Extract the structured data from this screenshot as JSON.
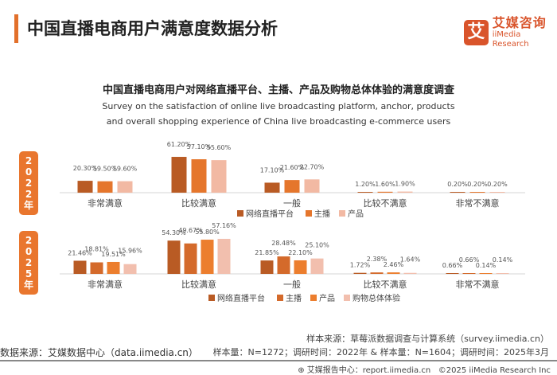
{
  "header": {
    "title": "中国直播电商用户满意度数据分析",
    "logo_mark": "艾",
    "logo_cn": "艾媒咨询",
    "logo_en": "iiMedia Research"
  },
  "chart_data": [
    {
      "type": "bar",
      "year_label": "2022年",
      "title": "中国直播电商用户对网络直播平台、主播、产品及购物总体体验的满意度调查",
      "subtitle": "Survey on the satisfaction of online live broadcasting platform, anchor, products and overall shopping experience of China live broadcasting e-commerce users",
      "categories": [
        "非常满意",
        "比较满意",
        "一般",
        "比较不满意",
        "非常不满意"
      ],
      "series": [
        {
          "name": "网络直播平台",
          "color": "#b95b24",
          "values": [
            20.3,
            61.2,
            17.1,
            1.2,
            0.2
          ]
        },
        {
          "name": "主播",
          "color": "#e5762c",
          "values": [
            19.5,
            57.1,
            21.6,
            1.6,
            0.2
          ]
        },
        {
          "name": "产品",
          "color": "#f2b9a3",
          "values": [
            19.6,
            55.6,
            22.7,
            1.9,
            0.2
          ]
        }
      ],
      "unit": "%"
    },
    {
      "type": "bar",
      "year_label": "2025年",
      "categories": [
        "非常满意",
        "比较满意",
        "一般",
        "比较不满意",
        "非常不满意"
      ],
      "series": [
        {
          "name": "网络直播平台",
          "color": "#b95b24",
          "values": [
            21.46,
            54.3,
            21.85,
            1.72,
            0.66
          ]
        },
        {
          "name": "主播",
          "color": "#d46a2b",
          "values": [
            18.81,
            49.67,
            28.48,
            2.38,
            0.66
          ]
        },
        {
          "name": "产品",
          "color": "#ec7e2e",
          "values": [
            19.51,
            55.8,
            22.1,
            2.46,
            0.14
          ]
        },
        {
          "name": "购物总体体验",
          "color": "#f2bfae",
          "values": [
            15.96,
            57.16,
            25.1,
            1.64,
            0.14
          ]
        }
      ],
      "unit": "%"
    }
  ],
  "footer": {
    "sample_source": "样本来源：草莓派数据调查与计算系统（survey.iimedia.cn）",
    "sample_info": "样本量：N=1272；调研时间：2022年 & 样本量：N=1604；调研时间：2025年3月",
    "data_source": "数据来源：艾媒数据中心（data.iimedia.cn）",
    "report": "艾媒报告中心：report.iimedia.cn",
    "copyright": "©2025  iiMedia Research Inc"
  }
}
